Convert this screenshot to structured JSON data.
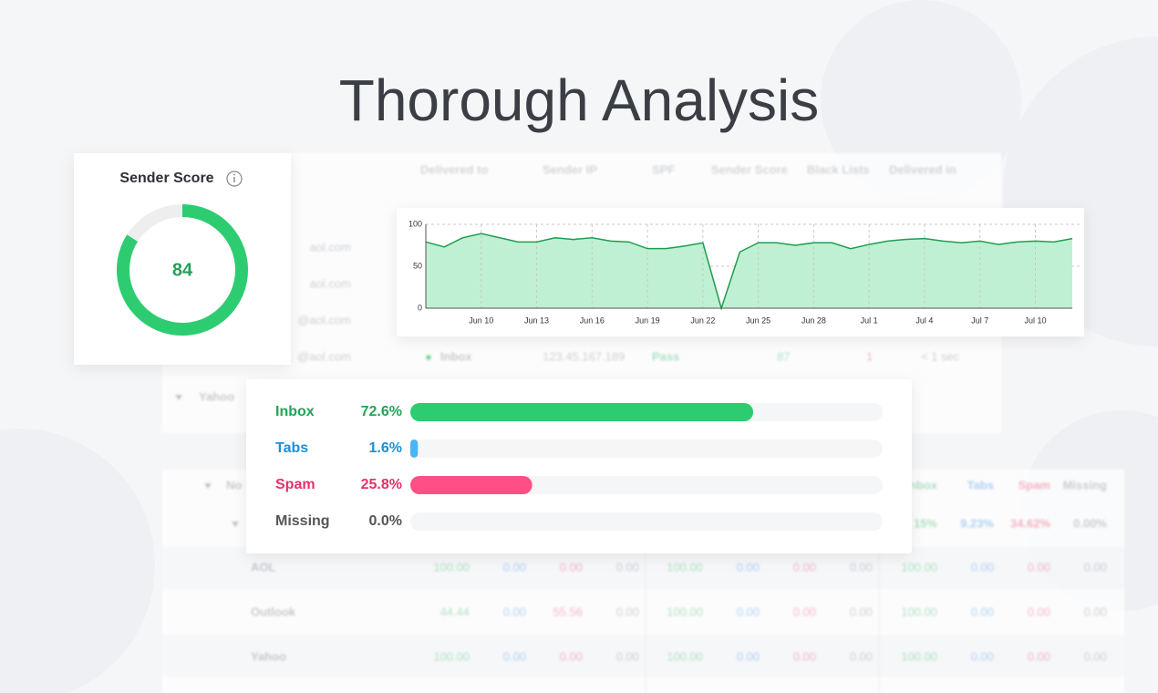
{
  "title": "Thorough Analysis",
  "background_table": {
    "headers": [
      "Delivered to",
      "Sender IP",
      "SPF",
      "Sender Score",
      "Black Lists",
      "Delivered in"
    ],
    "emails": [
      "aol.com",
      "aol.com",
      "@aol.com",
      "@aol.com"
    ],
    "row": [
      "Inbox",
      "123.45.167.189",
      "Pass",
      "87",
      "1",
      "< 1 sec"
    ],
    "group": "Yahoo"
  },
  "lower_table": {
    "group": "No",
    "headers": [
      "Inbox",
      "Tabs",
      "Spam",
      "Missing"
    ],
    "summary": [
      "15%",
      "9.23%",
      "34.62%",
      "0.00%"
    ],
    "rows": [
      {
        "name": "AOL",
        "cells": [
          "100.00",
          "0.00",
          "0.00",
          "0.00",
          "100.00",
          "0.00",
          "0.00",
          "0.00",
          "100.00",
          "0.00",
          "0.00",
          "0.00"
        ]
      },
      {
        "name": "Outlook",
        "cells": [
          "44.44",
          "0.00",
          "55.56",
          "0.00",
          "100.00",
          "0.00",
          "0.00",
          "0.00",
          "100.00",
          "0.00",
          "0.00",
          "0.00"
        ]
      },
      {
        "name": "Yahoo",
        "cells": [
          "100.00",
          "0.00",
          "0.00",
          "0.00",
          "100.00",
          "0.00",
          "0.00",
          "0.00",
          "100.00",
          "0.00",
          "0.00",
          "0.00"
        ]
      }
    ]
  },
  "chart_data": [
    {
      "type": "gauge",
      "title": "Sender Score",
      "value": 84,
      "ylim": [
        0,
        100
      ],
      "color": "#2ecc71",
      "track_color": "#eeeeee",
      "text_color": "#27a05a"
    },
    {
      "type": "area",
      "categories": [
        null,
        null,
        null,
        "Jun 10",
        null,
        null,
        "Jun 13",
        null,
        null,
        "Jun 16",
        null,
        null,
        "Jun 19",
        null,
        null,
        "Jun 22",
        null,
        null,
        "Jun 25",
        null,
        null,
        "Jun 28",
        null,
        null,
        "Jul 1",
        null,
        null,
        "Jul 4",
        null,
        null,
        "Jul 7",
        null,
        null,
        "Jul 10",
        null,
        null
      ],
      "values": [
        79,
        73,
        84,
        89,
        84,
        79,
        79,
        84,
        82,
        84,
        80,
        79,
        71,
        71,
        74,
        78,
        0,
        67,
        78,
        78,
        75,
        78,
        78,
        71,
        76,
        80,
        82,
        83,
        80,
        78,
        80,
        76,
        79,
        80,
        79,
        83
      ],
      "ylim": [
        0,
        100
      ],
      "yticks": [
        0,
        50,
        100
      ],
      "color": "#1e9e50",
      "fill": "#bff0d3",
      "grid": true
    },
    {
      "type": "bar",
      "orientation": "horizontal",
      "categories": [
        "Inbox",
        "Tabs",
        "Spam",
        "Missing"
      ],
      "values": [
        72.6,
        1.6,
        25.8,
        0.0
      ],
      "value_labels": [
        "72.6%",
        "1.6%",
        "25.8%",
        "0.0%"
      ],
      "colors": [
        "#2ecc71",
        "#4db3f5",
        "#ff4f86",
        "#cccccc"
      ],
      "label_colors": [
        "#23a455",
        "#1f8fd6",
        "#e8306a",
        "#555555"
      ],
      "xlim": [
        0,
        100
      ]
    }
  ]
}
